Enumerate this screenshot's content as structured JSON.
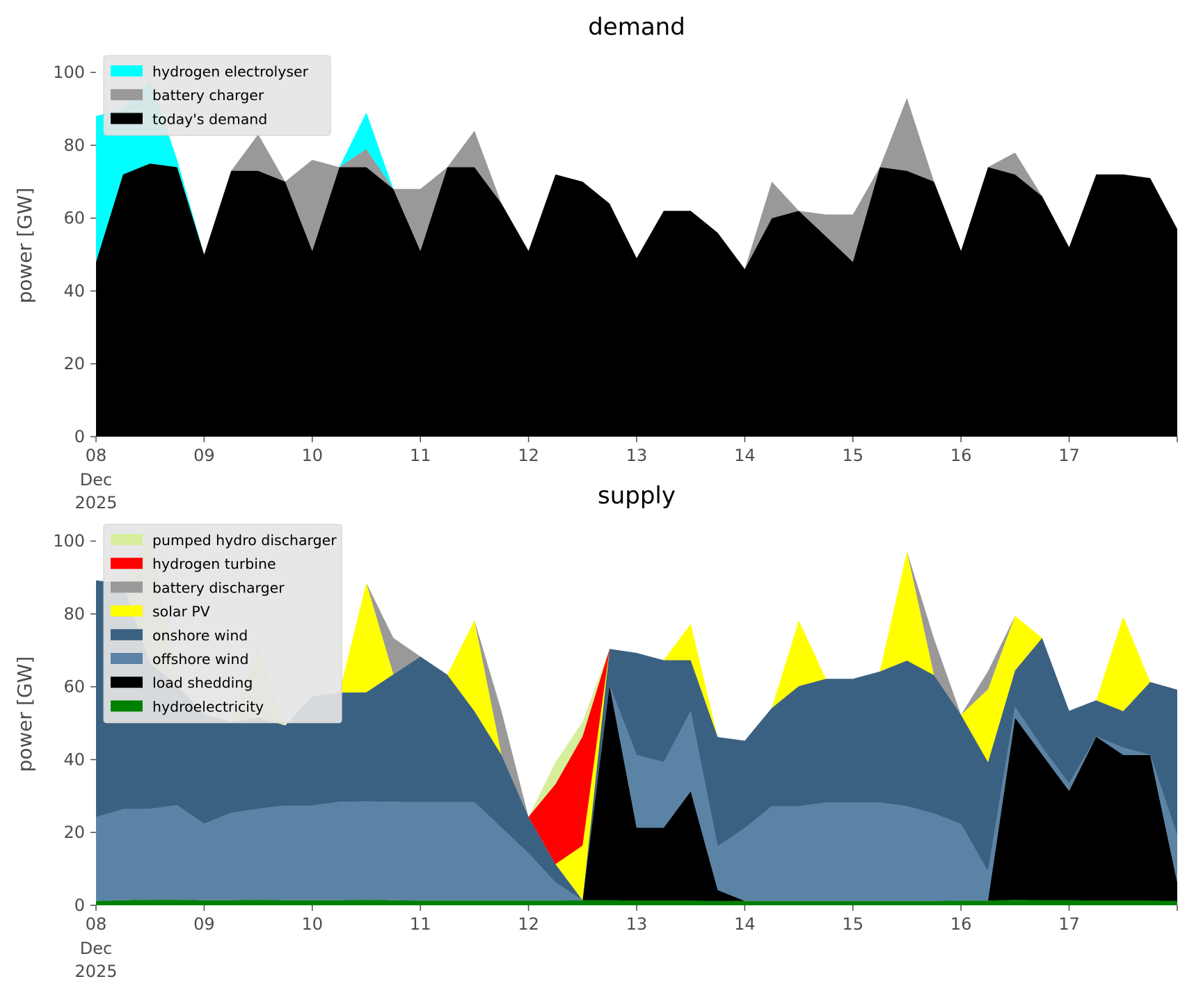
{
  "chart_data": [
    {
      "type": "area",
      "stacked": true,
      "title": "demand",
      "ylabel": "power [GW]",
      "ylim": [
        0,
        105
      ],
      "yticks": [
        "0",
        "20",
        "40",
        "60",
        "80",
        "100"
      ],
      "xlim": [
        0,
        10
      ],
      "x_units": "days from 08 Dec 2025",
      "xticks": [
        "08",
        "09",
        "10",
        "11",
        "12",
        "13",
        "14",
        "15",
        "16",
        "17"
      ],
      "xtick_sub": [
        "Dec",
        "2025"
      ],
      "grid": false,
      "legend_position": "upper-left",
      "legend": [
        "hydrogen electrolyser",
        "battery charger",
        "today's demand"
      ],
      "x": [
        0,
        0.25,
        0.5,
        0.75,
        1,
        1.25,
        1.5,
        1.75,
        2,
        2.25,
        2.5,
        2.75,
        3,
        3.25,
        3.5,
        3.75,
        4,
        4.25,
        4.5,
        4.75,
        5,
        5.25,
        5.5,
        5.75,
        6,
        6.25,
        6.5,
        6.75,
        7,
        7.25,
        7.5,
        7.75,
        8,
        8.25,
        8.5,
        8.75,
        9,
        9.25,
        9.5,
        9.75,
        10
      ],
      "series": [
        {
          "name": "today's demand",
          "color": "#000000",
          "values": [
            48,
            72,
            75,
            74,
            50,
            73,
            73,
            70,
            51,
            74,
            74,
            68,
            51,
            74,
            74,
            64,
            51,
            72,
            70,
            64,
            49,
            62,
            62,
            56,
            46,
            60,
            62,
            55,
            48,
            74,
            73,
            70,
            51,
            74,
            72,
            66,
            52,
            72,
            72,
            71,
            57
          ]
        },
        {
          "name": "battery charger",
          "color": "#999999",
          "values": [
            0,
            0,
            0,
            0,
            0,
            0,
            10,
            0,
            25,
            0,
            5,
            0,
            17,
            0,
            10,
            0,
            0,
            0,
            0,
            0,
            0,
            0,
            0,
            0,
            0,
            10,
            0,
            6,
            13,
            0,
            20,
            0,
            0,
            0,
            6,
            0,
            0,
            0,
            0,
            0,
            0
          ]
        },
        {
          "name": "hydrogen electrolyser",
          "color": "#00ffff",
          "values": [
            40,
            18,
            23,
            2,
            0,
            0,
            0,
            0,
            0,
            0,
            10,
            0,
            0,
            0,
            0,
            0,
            0,
            0,
            0,
            0,
            0,
            0,
            0,
            0,
            0,
            0,
            0,
            0,
            0,
            0,
            0,
            0,
            0,
            0,
            0,
            0,
            0,
            0,
            0,
            0,
            0
          ]
        }
      ]
    },
    {
      "type": "area",
      "stacked": true,
      "title": "supply",
      "ylabel": "power [GW]",
      "ylim": [
        0,
        105
      ],
      "yticks": [
        "0",
        "20",
        "40",
        "60",
        "80",
        "100"
      ],
      "xlim": [
        0,
        10
      ],
      "x_units": "days from 08 Dec 2025",
      "xticks": [
        "08",
        "09",
        "10",
        "11",
        "12",
        "13",
        "14",
        "15",
        "16",
        "17"
      ],
      "xtick_sub": [
        "Dec",
        "2025"
      ],
      "grid": false,
      "legend_position": "upper-left",
      "legend": [
        "pumped hydro discharger",
        "hydrogen turbine",
        "battery discharger",
        "solar PV",
        "onshore wind",
        "offshore wind",
        "load shedding",
        "hydroelectricity"
      ],
      "x": [
        0,
        0.25,
        0.5,
        0.75,
        1,
        1.25,
        1.5,
        1.75,
        2,
        2.25,
        2.5,
        2.75,
        3,
        3.25,
        3.5,
        3.75,
        4,
        4.25,
        4.5,
        4.75,
        5,
        5.25,
        5.5,
        5.75,
        6,
        6.25,
        6.5,
        6.75,
        7,
        7.25,
        7.5,
        7.75,
        8,
        8.25,
        8.5,
        8.75,
        9,
        9.25,
        9.5,
        9.75,
        10
      ],
      "series": [
        {
          "name": "hydroelectricity",
          "color": "#008000",
          "values": [
            1.2,
            1.4,
            1.5,
            1.5,
            1.4,
            1.4,
            1.5,
            1.4,
            1.4,
            1.4,
            1.5,
            1.4,
            1.3,
            1.3,
            1.3,
            1.3,
            1.3,
            1.3,
            1.4,
            1.4,
            1.3,
            1.3,
            1.3,
            1.2,
            1.2,
            1.2,
            1.2,
            1.2,
            1.2,
            1.2,
            1.2,
            1.2,
            1.3,
            1.3,
            1.5,
            1.4,
            1.4,
            1.3,
            1.3,
            1.3,
            1.2
          ]
        },
        {
          "name": "load shedding",
          "color": "#000000",
          "values": [
            0,
            0,
            0,
            0,
            0,
            0,
            0,
            0,
            0,
            0,
            0,
            0,
            0,
            0,
            0,
            0,
            0,
            0,
            0,
            59,
            20,
            20,
            30,
            3,
            0,
            0,
            0,
            0,
            0,
            0,
            0,
            0,
            0,
            0,
            50,
            40,
            30,
            45,
            40,
            40,
            5
          ]
        },
        {
          "name": "offshore wind",
          "color": "#5b83a5",
          "values": [
            23,
            25,
            25,
            26,
            21,
            24,
            25,
            26,
            26,
            27,
            27,
            27,
            27,
            27,
            27,
            20,
            13,
            5,
            0,
            0,
            20,
            18,
            22,
            12,
            20,
            26,
            26,
            27,
            27,
            27,
            26,
            24,
            21,
            8,
            3,
            2,
            2,
            0,
            2,
            0,
            13
          ]
        },
        {
          "name": "onshore wind",
          "color": "#3b6182",
          "values": [
            65,
            62,
            40,
            33,
            30,
            25,
            25,
            22,
            30,
            30,
            30,
            35,
            40,
            35,
            25,
            20,
            10,
            5,
            0,
            10,
            28,
            28,
            14,
            30,
            24,
            27,
            33,
            34,
            34,
            36,
            40,
            38,
            30,
            30,
            10,
            30,
            20,
            10,
            10,
            20,
            40
          ]
        },
        {
          "name": "solar PV",
          "color": "#ffff00",
          "values": [
            0,
            0,
            0,
            0,
            0,
            0,
            0,
            0,
            0,
            0,
            30,
            0,
            0,
            0,
            25,
            0,
            0,
            0,
            15,
            0,
            0,
            0,
            10,
            0,
            0,
            0,
            18,
            0,
            0,
            0,
            30,
            0,
            0,
            20,
            15,
            0,
            0,
            0,
            26,
            0,
            0
          ]
        },
        {
          "name": "battery discharger",
          "color": "#999999",
          "values": [
            0,
            0,
            0,
            0,
            0,
            0,
            0,
            0,
            0,
            0,
            0,
            10,
            0,
            0,
            0,
            12,
            0,
            0,
            0,
            0,
            0,
            0,
            0,
            0,
            0,
            0,
            0,
            0,
            0,
            0,
            0,
            10,
            0,
            5,
            0,
            0,
            0,
            0,
            0,
            0,
            0
          ]
        },
        {
          "name": "hydrogen turbine",
          "color": "#ff0000",
          "values": [
            0,
            0,
            0,
            0,
            0,
            0,
            0,
            0,
            0,
            0,
            0,
            0,
            0,
            0,
            0,
            0,
            0,
            22,
            30,
            0,
            0,
            0,
            0,
            0,
            0,
            0,
            0,
            0,
            0,
            0,
            0,
            0,
            0,
            0,
            0,
            0,
            0,
            0,
            0,
            0,
            0
          ]
        },
        {
          "name": "pumped hydro discharger",
          "color": "#d6ee9b",
          "values": [
            0,
            0,
            36,
            0,
            0,
            0,
            20,
            0,
            0,
            0,
            0,
            0,
            0,
            0,
            0,
            0,
            0,
            6,
            4,
            0,
            0,
            0,
            0,
            0,
            0,
            0,
            0,
            0,
            0,
            0,
            0,
            0,
            0,
            0,
            0,
            0,
            0,
            0,
            0,
            0,
            0
          ]
        }
      ]
    }
  ]
}
